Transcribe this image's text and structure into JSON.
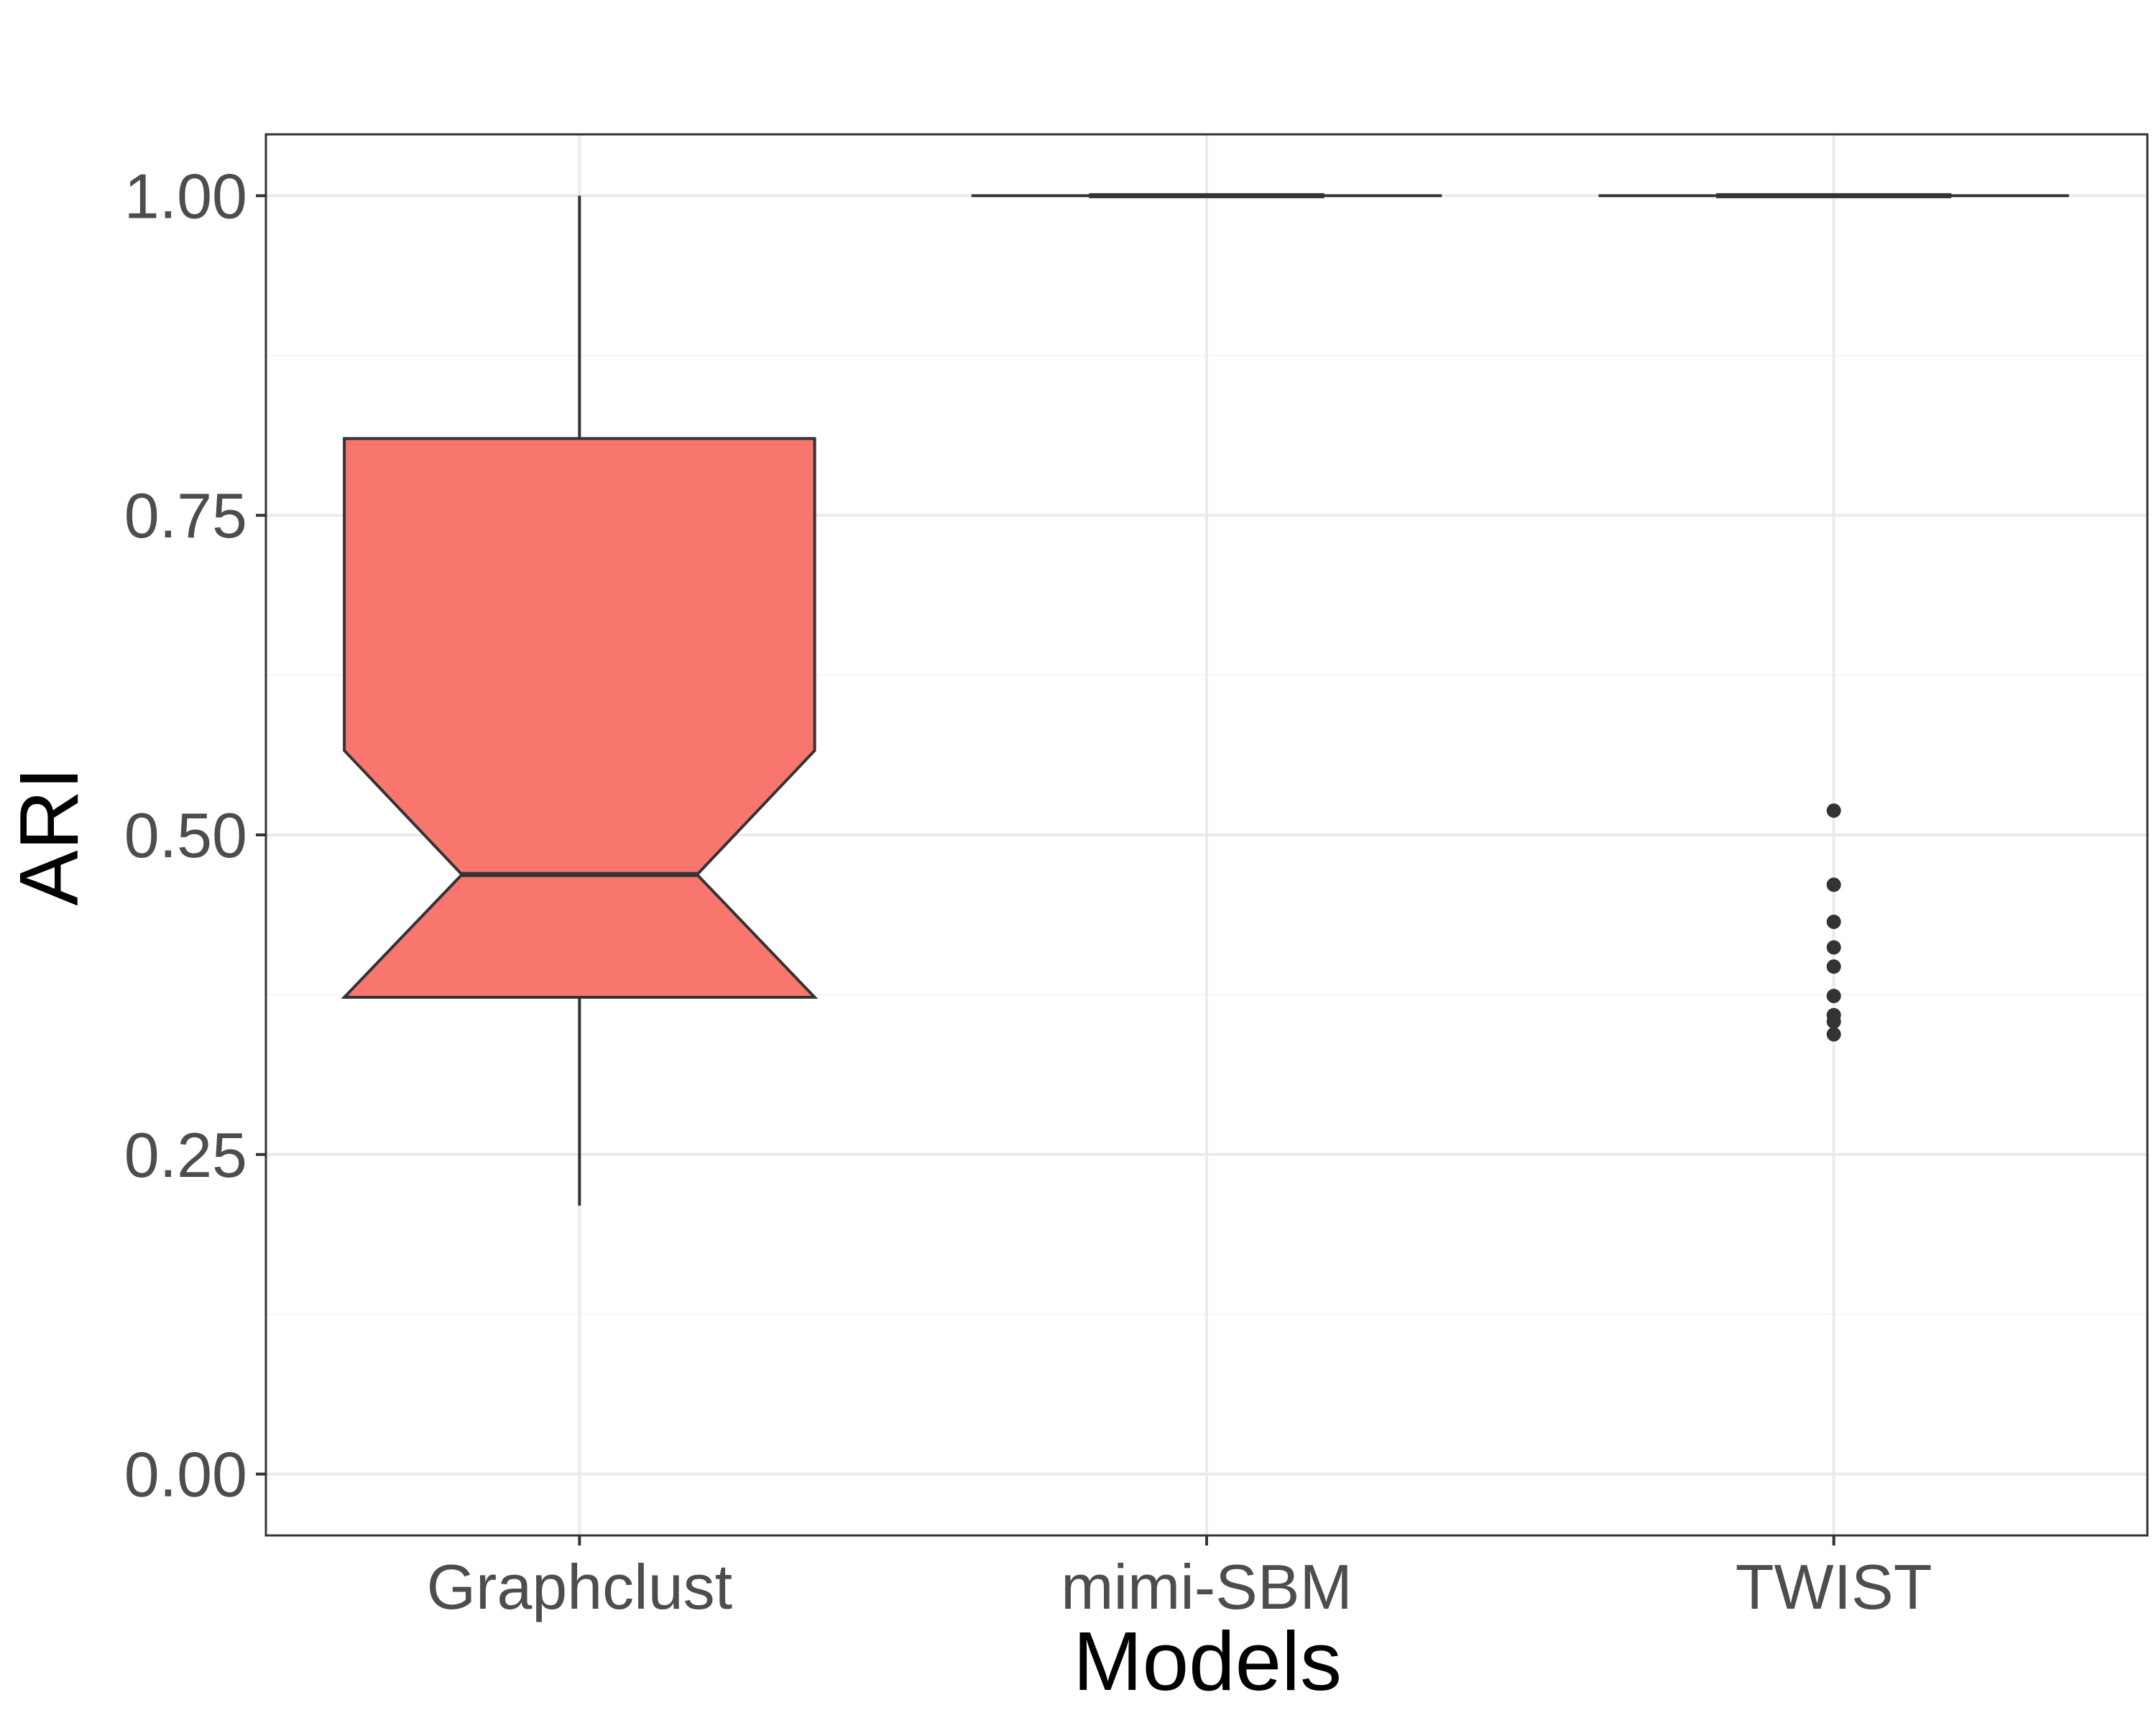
{
  "chart_data": {
    "type": "boxplot",
    "title": "",
    "xlabel": "Models",
    "ylabel": "ARI",
    "categories": [
      "Graphclust",
      "mimi-SBM",
      "TWIST"
    ],
    "ylim": [
      -0.048,
      1.048
    ],
    "yticks": [
      0.0,
      0.25,
      0.5,
      0.75,
      1.0
    ],
    "ytick_labels": [
      "0.00",
      "0.25",
      "0.50",
      "0.75",
      "1.00"
    ],
    "grid": true,
    "notched": true,
    "boxes": [
      {
        "category": "Graphclust",
        "fill": "#f8766d",
        "whisker_low": 0.21,
        "q1": 0.373,
        "median": 0.469,
        "q3": 0.81,
        "whisker_high": 1.0,
        "notch_low": 0.373,
        "notch_high": 0.566,
        "outliers": []
      },
      {
        "category": "mimi-SBM",
        "fill": "#ffffff",
        "whisker_low": 1.0,
        "q1": 1.0,
        "median": 1.0,
        "q3": 1.0,
        "whisker_high": 1.0,
        "notch_low": 1.0,
        "notch_high": 1.0,
        "outliers": []
      },
      {
        "category": "TWIST",
        "fill": "#ffffff",
        "whisker_low": 1.0,
        "q1": 1.0,
        "median": 1.0,
        "q3": 1.0,
        "whisker_high": 1.0,
        "notch_low": 1.0,
        "notch_high": 1.0,
        "outliers": [
          0.519,
          0.461,
          0.432,
          0.412,
          0.397,
          0.374,
          0.359,
          0.354,
          0.344
        ]
      }
    ]
  },
  "colors": {
    "panel_border": "#333333",
    "grid_major": "#ebebeb",
    "grid_minor": "#f5f5f5",
    "box_line": "#333333",
    "tick_text": "#4d4d4d",
    "title_text": "#000000"
  }
}
